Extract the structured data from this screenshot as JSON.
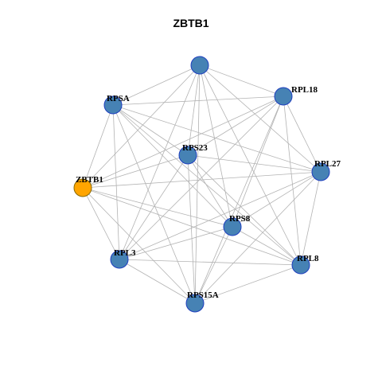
{
  "title": "ZBTB1",
  "colors": {
    "node_fill": "#4682b4",
    "focus_fill": "#ffa500",
    "edge": "#b3b3b3",
    "node_border": "#1f3fbf"
  },
  "nodes": [
    {
      "id": "top",
      "label": ""
    },
    {
      "id": "RPL18",
      "label": "RPL18"
    },
    {
      "id": "RPSA",
      "label": "RPSA"
    },
    {
      "id": "RPS23",
      "label": "RPS23"
    },
    {
      "id": "RPL27",
      "label": "RPL27"
    },
    {
      "id": "ZBTB1",
      "label": "ZBTB1",
      "focus": true
    },
    {
      "id": "RPS8",
      "label": "RPS8"
    },
    {
      "id": "RPL3",
      "label": "RPL3"
    },
    {
      "id": "RPL8",
      "label": "RPL8"
    },
    {
      "id": "RPS15A",
      "label": "RPS15A"
    }
  ],
  "edges": [
    [
      "top",
      "RPSA"
    ],
    [
      "top",
      "RPL18"
    ],
    [
      "top",
      "RPS23"
    ],
    [
      "top",
      "RPL27"
    ],
    [
      "top",
      "ZBTB1"
    ],
    [
      "top",
      "RPS8"
    ],
    [
      "top",
      "RPL3"
    ],
    [
      "top",
      "RPL8"
    ],
    [
      "top",
      "RPS15A"
    ],
    [
      "RPSA",
      "RPL18"
    ],
    [
      "RPSA",
      "RPS23"
    ],
    [
      "RPSA",
      "RPL27"
    ],
    [
      "RPSA",
      "RPS8"
    ],
    [
      "RPSA",
      "RPL3"
    ],
    [
      "RPSA",
      "RPL8"
    ],
    [
      "RPSA",
      "RPS15A"
    ],
    [
      "RPSA",
      "ZBTB1"
    ],
    [
      "RPL18",
      "RPS23"
    ],
    [
      "RPL18",
      "RPL27"
    ],
    [
      "RPL18",
      "ZBTB1"
    ],
    [
      "RPL18",
      "RPS8"
    ],
    [
      "RPL18",
      "RPL3"
    ],
    [
      "RPL18",
      "RPL8"
    ],
    [
      "RPL18",
      "RPS15A"
    ],
    [
      "RPS23",
      "RPL27"
    ],
    [
      "RPS23",
      "ZBTB1"
    ],
    [
      "RPS23",
      "RPS8"
    ],
    [
      "RPS23",
      "RPL3"
    ],
    [
      "RPS23",
      "RPL8"
    ],
    [
      "RPS23",
      "RPS15A"
    ],
    [
      "RPL27",
      "ZBTB1"
    ],
    [
      "RPL27",
      "RPS8"
    ],
    [
      "RPL27",
      "RPL3"
    ],
    [
      "RPL27",
      "RPL8"
    ],
    [
      "RPL27",
      "RPS15A"
    ],
    [
      "ZBTB1",
      "RPS8"
    ],
    [
      "ZBTB1",
      "RPL3"
    ],
    [
      "ZBTB1",
      "RPL8"
    ],
    [
      "ZBTB1",
      "RPS15A"
    ],
    [
      "RPS8",
      "RPL3"
    ],
    [
      "RPS8",
      "RPL8"
    ],
    [
      "RPS8",
      "RPS15A"
    ],
    [
      "RPL3",
      "RPL8"
    ],
    [
      "RPL3",
      "RPS15A"
    ],
    [
      "RPL8",
      "RPS15A"
    ]
  ]
}
